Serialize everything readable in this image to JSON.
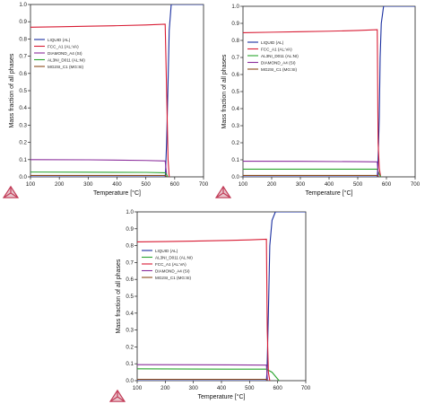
{
  "chart_data": [
    {
      "type": "line",
      "xlabel": "Temperature [°C]",
      "ylabel": "Mass fraction of all phases",
      "xlim": [
        100,
        700
      ],
      "ylim": [
        0,
        1.0
      ],
      "xticks": [
        "100",
        "200",
        "300",
        "400",
        "500",
        "600",
        "700"
      ],
      "yticks": [
        "0.0",
        "0.1",
        "0.2",
        "0.3",
        "0.4",
        "0.5",
        "0.6",
        "0.7",
        "0.8",
        "0.9",
        "1.0"
      ],
      "legend_position": "left",
      "series": [
        {
          "name": "LIQUID   (AL)",
          "color": "#1a2fa0",
          "x": [
            100,
            567,
            568,
            572,
            577,
            581,
            588,
            600,
            700
          ],
          "y": [
            0,
            0,
            0.02,
            0.2,
            0.55,
            0.85,
            1.0,
            1.0,
            1.0
          ]
        },
        {
          "name": "FCC_A1   (AL:VA)",
          "color": "#d81c34",
          "x": [
            100,
            200,
            300,
            400,
            500,
            567,
            572,
            577,
            581
          ],
          "y": [
            0.868,
            0.871,
            0.874,
            0.877,
            0.881,
            0.886,
            0.5,
            0.1,
            0
          ]
        },
        {
          "name": "DIAMOND_A4   (SI)",
          "color": "#8b2e9c",
          "x": [
            100,
            300,
            500,
            567,
            571,
            573
          ],
          "y": [
            0.1,
            0.099,
            0.095,
            0.092,
            0.03,
            0
          ]
        },
        {
          "name": "AL3NI_D011   (AL:NI)",
          "color": "#2aa52f",
          "x": [
            100,
            300,
            500,
            567,
            573,
            576
          ],
          "y": [
            0.028,
            0.027,
            0.026,
            0.024,
            0.01,
            0
          ]
        },
        {
          "name": "MG2SI_C1   (MG:SI)",
          "color": "#8a4a1a",
          "x": [
            100,
            300,
            500,
            567,
            571
          ],
          "y": [
            0.008,
            0.008,
            0.008,
            0.008,
            0
          ]
        }
      ]
    },
    {
      "type": "line",
      "xlabel": "Temperature [°C]",
      "ylabel": "Mass fraction of all phases",
      "xlim": [
        100,
        700
      ],
      "ylim": [
        0,
        1.0
      ],
      "xticks": [
        "100",
        "200",
        "300",
        "400",
        "500",
        "600",
        "700"
      ],
      "yticks": [
        "0.0",
        "0.1",
        "0.2",
        "0.3",
        "0.4",
        "0.5",
        "0.6",
        "0.7",
        "0.8",
        "0.9",
        "1.0"
      ],
      "legend_position": "left",
      "series": [
        {
          "name": "LIQUID   (AL)",
          "color": "#1a2fa0",
          "x": [
            100,
            568,
            570,
            575,
            578,
            582,
            590,
            600,
            700
          ],
          "y": [
            0,
            0,
            0.05,
            0.35,
            0.7,
            0.9,
            1.0,
            1.0,
            1.0
          ]
        },
        {
          "name": "FCC_A1   (AL:VA)",
          "color": "#d81c34",
          "x": [
            100,
            200,
            300,
            400,
            500,
            568,
            571,
            575,
            580
          ],
          "y": [
            0.845,
            0.848,
            0.851,
            0.854,
            0.858,
            0.863,
            0.2,
            0.05,
            0
          ]
        },
        {
          "name": "AL3NI_D011   (AL:NI)",
          "color": "#2aa52f",
          "x": [
            100,
            300,
            500,
            568,
            574,
            580
          ],
          "y": [
            0.045,
            0.045,
            0.045,
            0.045,
            0.02,
            0
          ]
        },
        {
          "name": "DIAMOND_A4   (SI)",
          "color": "#8b2e9c",
          "x": [
            100,
            300,
            500,
            568,
            572
          ],
          "y": [
            0.092,
            0.091,
            0.089,
            0.088,
            0
          ]
        },
        {
          "name": "MG2SI_C1   (MG:SI)",
          "color": "#8a4a1a",
          "x": [
            100,
            300,
            500,
            568,
            572
          ],
          "y": [
            0.008,
            0.008,
            0.008,
            0.008,
            0
          ]
        }
      ]
    },
    {
      "type": "line",
      "xlabel": "Temperature [°C]",
      "ylabel": "Mass fraction of all phases",
      "xlim": [
        100,
        700
      ],
      "ylim": [
        0,
        1.0
      ],
      "xticks": [
        "100",
        "200",
        "300",
        "400",
        "500",
        "600",
        "700"
      ],
      "yticks": [
        "0.0",
        "0.1",
        "0.2",
        "0.3",
        "0.4",
        "0.5",
        "0.6",
        "0.7",
        "0.8",
        "0.9",
        "1.0"
      ],
      "legend_position": "left",
      "series": [
        {
          "name": "LIQUID   (AL)",
          "color": "#1a2fa0",
          "x": [
            100,
            560,
            562,
            567,
            572,
            580,
            592,
            605,
            700
          ],
          "y": [
            0,
            0,
            0.05,
            0.4,
            0.8,
            0.95,
            1.0,
            1.0,
            1.0
          ]
        },
        {
          "name": "AL3NI_D011   (AL:NI)",
          "color": "#2aa52f",
          "x": [
            100,
            300,
            500,
            560,
            580,
            595,
            605
          ],
          "y": [
            0.07,
            0.069,
            0.068,
            0.068,
            0.05,
            0.02,
            0
          ]
        },
        {
          "name": "FCC_A1   (AL:VA)",
          "color": "#d81c34",
          "x": [
            100,
            200,
            300,
            400,
            500,
            560,
            563,
            567,
            572
          ],
          "y": [
            0.822,
            0.824,
            0.827,
            0.83,
            0.834,
            0.838,
            0.3,
            0.05,
            0
          ]
        },
        {
          "name": "DIAMOND_A4   (SI)",
          "color": "#8b2e9c",
          "x": [
            100,
            300,
            500,
            560,
            564
          ],
          "y": [
            0.095,
            0.094,
            0.093,
            0.092,
            0
          ]
        },
        {
          "name": "MG2SI_C1   (MG:SI)",
          "color": "#8a4a1a",
          "x": [
            100,
            300,
            500,
            560,
            563
          ],
          "y": [
            0.008,
            0.008,
            0.008,
            0.008,
            0
          ]
        }
      ]
    }
  ]
}
